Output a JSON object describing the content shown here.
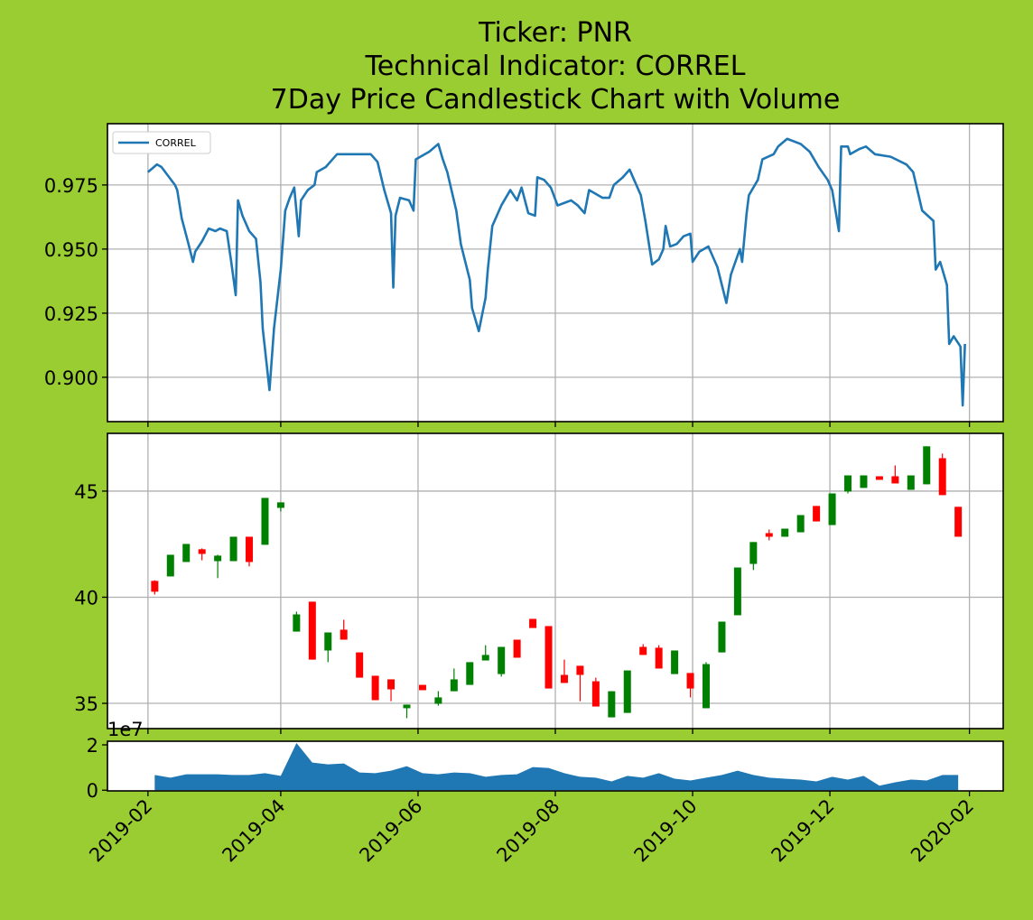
{
  "chart_data": [
    {
      "type": "line",
      "title": [
        "Ticker: PNR",
        "Technical Indicator: CORREL",
        "7Day Price Candlestick Chart with Volume"
      ],
      "x": [
        "2019-02-01",
        "2019-02-05",
        "2019-02-07",
        "2019-02-13",
        "2019-02-14",
        "2019-02-16",
        "2019-02-19",
        "2019-02-21",
        "2019-02-22",
        "2019-02-25",
        "2019-02-28",
        "2019-03-03",
        "2019-03-05",
        "2019-03-08",
        "2019-03-10",
        "2019-03-12",
        "2019-03-13",
        "2019-03-15",
        "2019-03-18",
        "2019-03-20",
        "2019-03-21",
        "2019-03-23",
        "2019-03-24",
        "2019-03-27",
        "2019-03-29",
        "2019-04-01",
        "2019-04-03",
        "2019-04-05",
        "2019-04-07",
        "2019-04-09",
        "2019-04-10",
        "2019-04-13",
        "2019-04-16",
        "2019-04-17",
        "2019-04-21",
        "2019-04-23",
        "2019-04-26",
        "2019-05-03",
        "2019-05-11",
        "2019-05-14",
        "2019-05-17",
        "2019-05-20",
        "2019-05-21",
        "2019-05-22",
        "2019-05-24",
        "2019-05-28",
        "2019-05-30",
        "2019-05-31",
        "2019-06-06",
        "2019-06-10",
        "2019-06-12",
        "2019-06-14",
        "2019-06-18",
        "2019-06-20",
        "2019-06-24",
        "2019-06-25",
        "2019-06-28",
        "2019-07-01",
        "2019-07-02",
        "2019-07-04",
        "2019-07-08",
        "2019-07-12",
        "2019-07-15",
        "2019-07-17",
        "2019-07-20",
        "2019-07-23",
        "2019-07-24",
        "2019-07-27",
        "2019-07-30",
        "2019-08-02",
        "2019-08-05",
        "2019-08-08",
        "2019-08-11",
        "2019-08-14",
        "2019-08-16",
        "2019-08-22",
        "2019-08-25",
        "2019-08-27",
        "2019-08-31",
        "2019-09-03",
        "2019-09-05",
        "2019-09-08",
        "2019-09-10",
        "2019-09-13",
        "2019-09-16",
        "2019-09-18",
        "2019-09-19",
        "2019-09-21",
        "2019-09-24",
        "2019-09-27",
        "2019-09-30",
        "2019-10-01",
        "2019-10-04",
        "2019-10-08",
        "2019-10-12",
        "2019-10-16",
        "2019-10-18",
        "2019-10-22",
        "2019-10-23",
        "2019-10-25",
        "2019-10-26",
        "2019-10-30",
        "2019-11-01",
        "2019-11-06",
        "2019-11-08",
        "2019-11-12",
        "2019-11-18",
        "2019-11-22",
        "2019-11-26",
        "2019-11-30",
        "2019-12-02",
        "2019-12-05",
        "2019-12-06",
        "2019-12-09",
        "2019-12-10",
        "2019-12-14",
        "2019-12-17",
        "2019-12-21",
        "2019-12-28",
        "2020-01-04",
        "2020-01-07",
        "2020-01-11",
        "2020-01-16",
        "2020-01-17",
        "2020-01-19",
        "2020-01-22",
        "2020-01-23",
        "2020-01-25",
        "2020-01-28",
        "2020-01-29",
        "2020-01-30"
      ],
      "series": [
        {
          "name": "CORREL",
          "color": "#1f77b4",
          "values": [
            0.98,
            0.983,
            0.982,
            0.975,
            0.973,
            0.962,
            0.952,
            0.945,
            0.949,
            0.953,
            0.958,
            0.957,
            0.958,
            0.957,
            0.945,
            0.932,
            0.969,
            0.963,
            0.957,
            0.955,
            0.954,
            0.937,
            0.919,
            0.895,
            0.919,
            0.942,
            0.965,
            0.97,
            0.974,
            0.955,
            0.969,
            0.973,
            0.975,
            0.98,
            0.982,
            0.984,
            0.987,
            0.987,
            0.987,
            0.984,
            0.973,
            0.964,
            0.935,
            0.963,
            0.97,
            0.969,
            0.965,
            0.985,
            0.988,
            0.991,
            0.985,
            0.98,
            0.965,
            0.952,
            0.938,
            0.927,
            0.918,
            0.931,
            0.942,
            0.959,
            0.967,
            0.973,
            0.969,
            0.974,
            0.964,
            0.963,
            0.978,
            0.977,
            0.974,
            0.967,
            0.968,
            0.969,
            0.967,
            0.964,
            0.973,
            0.97,
            0.97,
            0.975,
            0.978,
            0.981,
            0.977,
            0.971,
            0.961,
            0.944,
            0.946,
            0.95,
            0.959,
            0.951,
            0.952,
            0.955,
            0.956,
            0.945,
            0.949,
            0.951,
            0.943,
            0.929,
            0.94,
            0.95,
            0.945,
            0.964,
            0.971,
            0.977,
            0.985,
            0.987,
            0.99,
            0.993,
            0.991,
            0.988,
            0.982,
            0.977,
            0.973,
            0.957,
            0.99,
            0.99,
            0.987,
            0.989,
            0.99,
            0.987,
            0.986,
            0.983,
            0.98,
            0.965,
            0.961,
            0.942,
            0.945,
            0.936,
            0.913,
            0.916,
            0.912,
            0.889,
            0.913
          ]
        }
      ],
      "xlim": [
        "2019-01-14",
        "2020-02-16"
      ],
      "xticks": [
        "2019-02",
        "2019-04",
        "2019-06",
        "2019-08",
        "2019-10",
        "2019-12",
        "2020-02"
      ],
      "ylim": [
        0.8827,
        0.9989
      ],
      "yticks": [
        {
          "value": 0.9,
          "label": "0.900"
        },
        0.925,
        {
          "value": 0.95,
          "label": "0.950"
        },
        0.975
      ],
      "grid": true,
      "legend": "upper left"
    },
    {
      "type": "candlestick",
      "x": [
        "2019-02-04",
        "2019-02-11",
        "2019-02-18",
        "2019-02-25",
        "2019-03-04",
        "2019-03-11",
        "2019-03-18",
        "2019-03-25",
        "2019-04-01",
        "2019-04-08",
        "2019-04-15",
        "2019-04-22",
        "2019-04-29",
        "2019-05-06",
        "2019-05-13",
        "2019-05-20",
        "2019-05-27",
        "2019-06-03",
        "2019-06-10",
        "2019-06-17",
        "2019-06-24",
        "2019-07-01",
        "2019-07-08",
        "2019-07-15",
        "2019-07-22",
        "2019-07-29",
        "2019-08-05",
        "2019-08-12",
        "2019-08-19",
        "2019-08-26",
        "2019-09-02",
        "2019-09-09",
        "2019-09-16",
        "2019-09-23",
        "2019-09-30",
        "2019-10-07",
        "2019-10-14",
        "2019-10-21",
        "2019-10-28",
        "2019-11-04",
        "2019-11-11",
        "2019-11-18",
        "2019-11-25",
        "2019-12-02",
        "2019-12-09",
        "2019-12-16",
        "2019-12-23",
        "2019-12-30",
        "2020-01-06",
        "2020-01-13",
        "2020-01-20",
        "2020-01-27"
      ],
      "open": [
        40.77,
        40.98,
        41.66,
        42.26,
        41.7,
        41.7,
        42.85,
        42.47,
        44.21,
        38.38,
        39.79,
        37.49,
        38.47,
        37.4,
        36.3,
        36.13,
        34.77,
        35.87,
        34.98,
        35.57,
        35.87,
        37.02,
        36.38,
        38.0,
        38.98,
        38.64,
        36.34,
        36.77,
        36.04,
        34.34,
        34.55,
        37.66,
        37.62,
        36.38,
        36.43,
        34.77,
        37.4,
        39.15,
        41.57,
        43.02,
        42.85,
        43.06,
        44.3,
        43.4,
        44.98,
        45.15,
        45.7,
        45.7,
        45.06,
        45.32,
        46.55,
        44.26
      ],
      "high": [
        40.8,
        42.0,
        42.51,
        42.3,
        42.0,
        42.85,
        42.85,
        44.68,
        44.47,
        39.32,
        39.79,
        38.34,
        38.94,
        37.4,
        36.3,
        36.13,
        34.94,
        35.87,
        35.57,
        36.64,
        36.94,
        37.74,
        37.66,
        38.0,
        38.98,
        38.64,
        37.06,
        36.77,
        36.21,
        35.57,
        36.55,
        37.79,
        37.74,
        37.49,
        36.43,
        36.94,
        38.85,
        41.4,
        42.6,
        43.19,
        43.23,
        43.87,
        44.3,
        44.89,
        45.74,
        45.74,
        45.7,
        46.21,
        45.74,
        47.11,
        46.77,
        44.26
      ],
      "low": [
        40.13,
        40.98,
        41.66,
        41.74,
        40.9,
        41.7,
        41.45,
        42.47,
        44.04,
        38.38,
        37.06,
        36.94,
        38.0,
        36.21,
        35.15,
        35.1,
        34.3,
        35.62,
        34.89,
        35.57,
        35.87,
        37.02,
        36.26,
        37.15,
        38.55,
        35.7,
        35.96,
        35.1,
        34.85,
        34.34,
        34.55,
        37.28,
        36.64,
        36.38,
        35.28,
        34.77,
        37.4,
        39.15,
        41.28,
        42.68,
        42.85,
        43.06,
        43.57,
        43.4,
        44.89,
        45.15,
        45.53,
        45.36,
        45.06,
        45.32,
        44.81,
        42.85
      ],
      "close": [
        40.26,
        42.0,
        42.51,
        42.04,
        41.96,
        42.85,
        41.66,
        44.68,
        44.47,
        39.19,
        37.06,
        38.34,
        38.0,
        36.21,
        35.15,
        35.66,
        34.94,
        35.62,
        35.28,
        36.13,
        36.94,
        37.28,
        37.66,
        37.15,
        38.55,
        35.7,
        35.96,
        36.34,
        34.85,
        35.57,
        36.55,
        37.28,
        36.64,
        37.49,
        35.7,
        36.85,
        38.85,
        41.4,
        42.6,
        42.85,
        43.23,
        43.87,
        43.57,
        44.89,
        45.74,
        45.74,
        45.53,
        45.36,
        45.74,
        47.11,
        44.81,
        42.85
      ],
      "up_color": "#008000",
      "down_color": "#ff0000",
      "xlim": [
        "2019-01-14",
        "2020-02-16"
      ],
      "xticks": [
        "2019-02",
        "2019-04",
        "2019-06",
        "2019-08",
        "2019-10",
        "2019-12",
        "2020-02"
      ],
      "ylim": [
        33.81,
        47.72
      ],
      "yticks": [
        35,
        40,
        45
      ],
      "grid": true
    },
    {
      "type": "area",
      "x": [
        "2019-02-04",
        "2019-02-11",
        "2019-02-18",
        "2019-02-25",
        "2019-03-04",
        "2019-03-11",
        "2019-03-18",
        "2019-03-25",
        "2019-04-01",
        "2019-04-08",
        "2019-04-15",
        "2019-04-22",
        "2019-04-29",
        "2019-05-06",
        "2019-05-13",
        "2019-05-20",
        "2019-05-27",
        "2019-06-03",
        "2019-06-10",
        "2019-06-17",
        "2019-06-24",
        "2019-07-01",
        "2019-07-08",
        "2019-07-15",
        "2019-07-22",
        "2019-07-29",
        "2019-08-05",
        "2019-08-12",
        "2019-08-19",
        "2019-08-26",
        "2019-09-02",
        "2019-09-09",
        "2019-09-16",
        "2019-09-23",
        "2019-09-30",
        "2019-10-07",
        "2019-10-14",
        "2019-10-21",
        "2019-10-28",
        "2019-11-04",
        "2019-11-11",
        "2019-11-18",
        "2019-11-25",
        "2019-12-02",
        "2019-12-09",
        "2019-12-16",
        "2019-12-23",
        "2019-12-30",
        "2020-01-06",
        "2020-01-13",
        "2020-01-20",
        "2020-01-27"
      ],
      "values": [
        0.67,
        0.55,
        0.7,
        0.7,
        0.7,
        0.67,
        0.67,
        0.75,
        0.63,
        2.08,
        1.22,
        1.14,
        1.18,
        0.78,
        0.75,
        0.86,
        1.06,
        0.75,
        0.7,
        0.78,
        0.75,
        0.59,
        0.67,
        0.7,
        1.02,
        0.98,
        0.75,
        0.59,
        0.55,
        0.39,
        0.63,
        0.55,
        0.75,
        0.51,
        0.43,
        0.55,
        0.67,
        0.86,
        0.67,
        0.55,
        0.51,
        0.47,
        0.39,
        0.59,
        0.47,
        0.63,
        0.2,
        0.35,
        0.47,
        0.43,
        0.67,
        0.67
      ],
      "color": "#1f77b4",
      "offset_label": "1e7",
      "xlim": [
        "2019-01-14",
        "2020-02-16"
      ],
      "xticks": [
        "2019-02",
        "2019-04",
        "2019-06",
        "2019-08",
        "2019-10",
        "2019-12",
        "2020-02"
      ],
      "ylim": [
        -0.03,
        2.16
      ],
      "yticks": [
        0,
        2
      ],
      "grid": false
    }
  ]
}
